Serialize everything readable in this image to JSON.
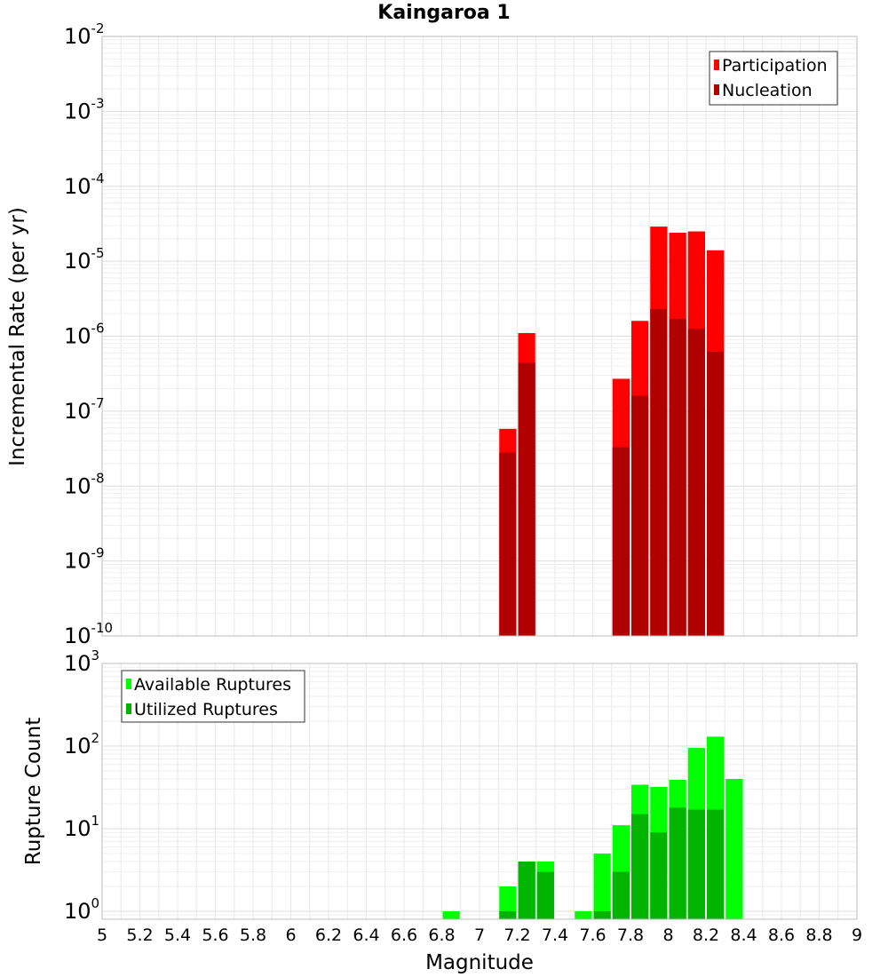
{
  "colors": {
    "participation": "#ff0000",
    "nucleation": "#b10000",
    "available": "#00ff00",
    "utilized": "#00b400",
    "grid": "#e8e8e8",
    "frame": "#bdbdbd"
  },
  "chart_data": [
    {
      "type": "bar",
      "title": "Kaingaroa 1",
      "ylabel": "Incremental Rate (per yr)",
      "xlabel": "",
      "yscale": "log",
      "ylim": [
        1e-10,
        0.01
      ],
      "xlim": [
        5,
        9
      ],
      "bin_width": 0.1,
      "ytick_labels": [
        {
          "base": "10",
          "exp": "-10",
          "value": 1e-10
        },
        {
          "base": "10",
          "exp": "-9",
          "value": 1e-09
        },
        {
          "base": "10",
          "exp": "-8",
          "value": 1e-08
        },
        {
          "base": "10",
          "exp": "-7",
          "value": 1e-07
        },
        {
          "base": "10",
          "exp": "-6",
          "value": 1e-06
        },
        {
          "base": "10",
          "exp": "-5",
          "value": 1e-05
        },
        {
          "base": "10",
          "exp": "-4",
          "value": 0.0001
        },
        {
          "base": "10",
          "exp": "-3",
          "value": 0.001
        },
        {
          "base": "10",
          "exp": "-2",
          "value": 0.01
        }
      ],
      "legend": {
        "position": "top-right"
      },
      "series": [
        {
          "name": "Participation",
          "color_key": "participation",
          "x": [
            7.15,
            7.25,
            7.75,
            7.85,
            7.95,
            8.05,
            8.15,
            8.25
          ],
          "values": [
            5.8e-08,
            1.1e-06,
            2.7e-07,
            1.6e-06,
            2.9e-05,
            2.4e-05,
            2.5e-05,
            1.4e-05
          ]
        },
        {
          "name": "Nucleation",
          "color_key": "nucleation",
          "x": [
            7.15,
            7.25,
            7.75,
            7.85,
            7.95,
            8.05,
            8.15,
            8.25
          ],
          "values": [
            2.8e-08,
            4.4e-07,
            3.3e-08,
            1.6e-07,
            2.3e-06,
            1.7e-06,
            1.25e-06,
            6.2e-07
          ]
        }
      ]
    },
    {
      "type": "bar",
      "title": "",
      "ylabel": "Rupture Count",
      "xlabel": "Magnitude",
      "yscale": "log",
      "ylim": [
        0.8,
        1000
      ],
      "xlim": [
        5,
        9
      ],
      "bin_width": 0.1,
      "xtick_labels": [
        "5",
        "5.2",
        "5.4",
        "5.6",
        "5.8",
        "6",
        "6.2",
        "6.4",
        "6.6",
        "6.8",
        "7",
        "7.2",
        "7.4",
        "7.6",
        "7.8",
        "8",
        "8.2",
        "8.4",
        "8.6",
        "8.8",
        "9"
      ],
      "ytick_labels": [
        {
          "base": "10",
          "exp": "0",
          "value": 1
        },
        {
          "base": "10",
          "exp": "1",
          "value": 10
        },
        {
          "base": "10",
          "exp": "2",
          "value": 100
        },
        {
          "base": "10",
          "exp": "3",
          "value": 1000
        }
      ],
      "legend": {
        "position": "top-left"
      },
      "series": [
        {
          "name": "Available Ruptures",
          "color_key": "available",
          "x": [
            6.85,
            7.15,
            7.25,
            7.35,
            7.55,
            7.65,
            7.75,
            7.85,
            7.95,
            8.05,
            8.15,
            8.25,
            8.35
          ],
          "values": [
            1,
            2,
            4,
            4,
            1,
            5,
            11,
            34,
            32,
            39,
            95,
            130,
            40
          ]
        },
        {
          "name": "Utilized Ruptures",
          "color_key": "utilized",
          "x": [
            7.15,
            7.25,
            7.35,
            7.65,
            7.75,
            7.85,
            7.95,
            8.05,
            8.15,
            8.25
          ],
          "values": [
            1,
            4,
            3,
            1,
            3,
            15,
            9,
            18,
            17,
            17
          ]
        }
      ]
    }
  ]
}
